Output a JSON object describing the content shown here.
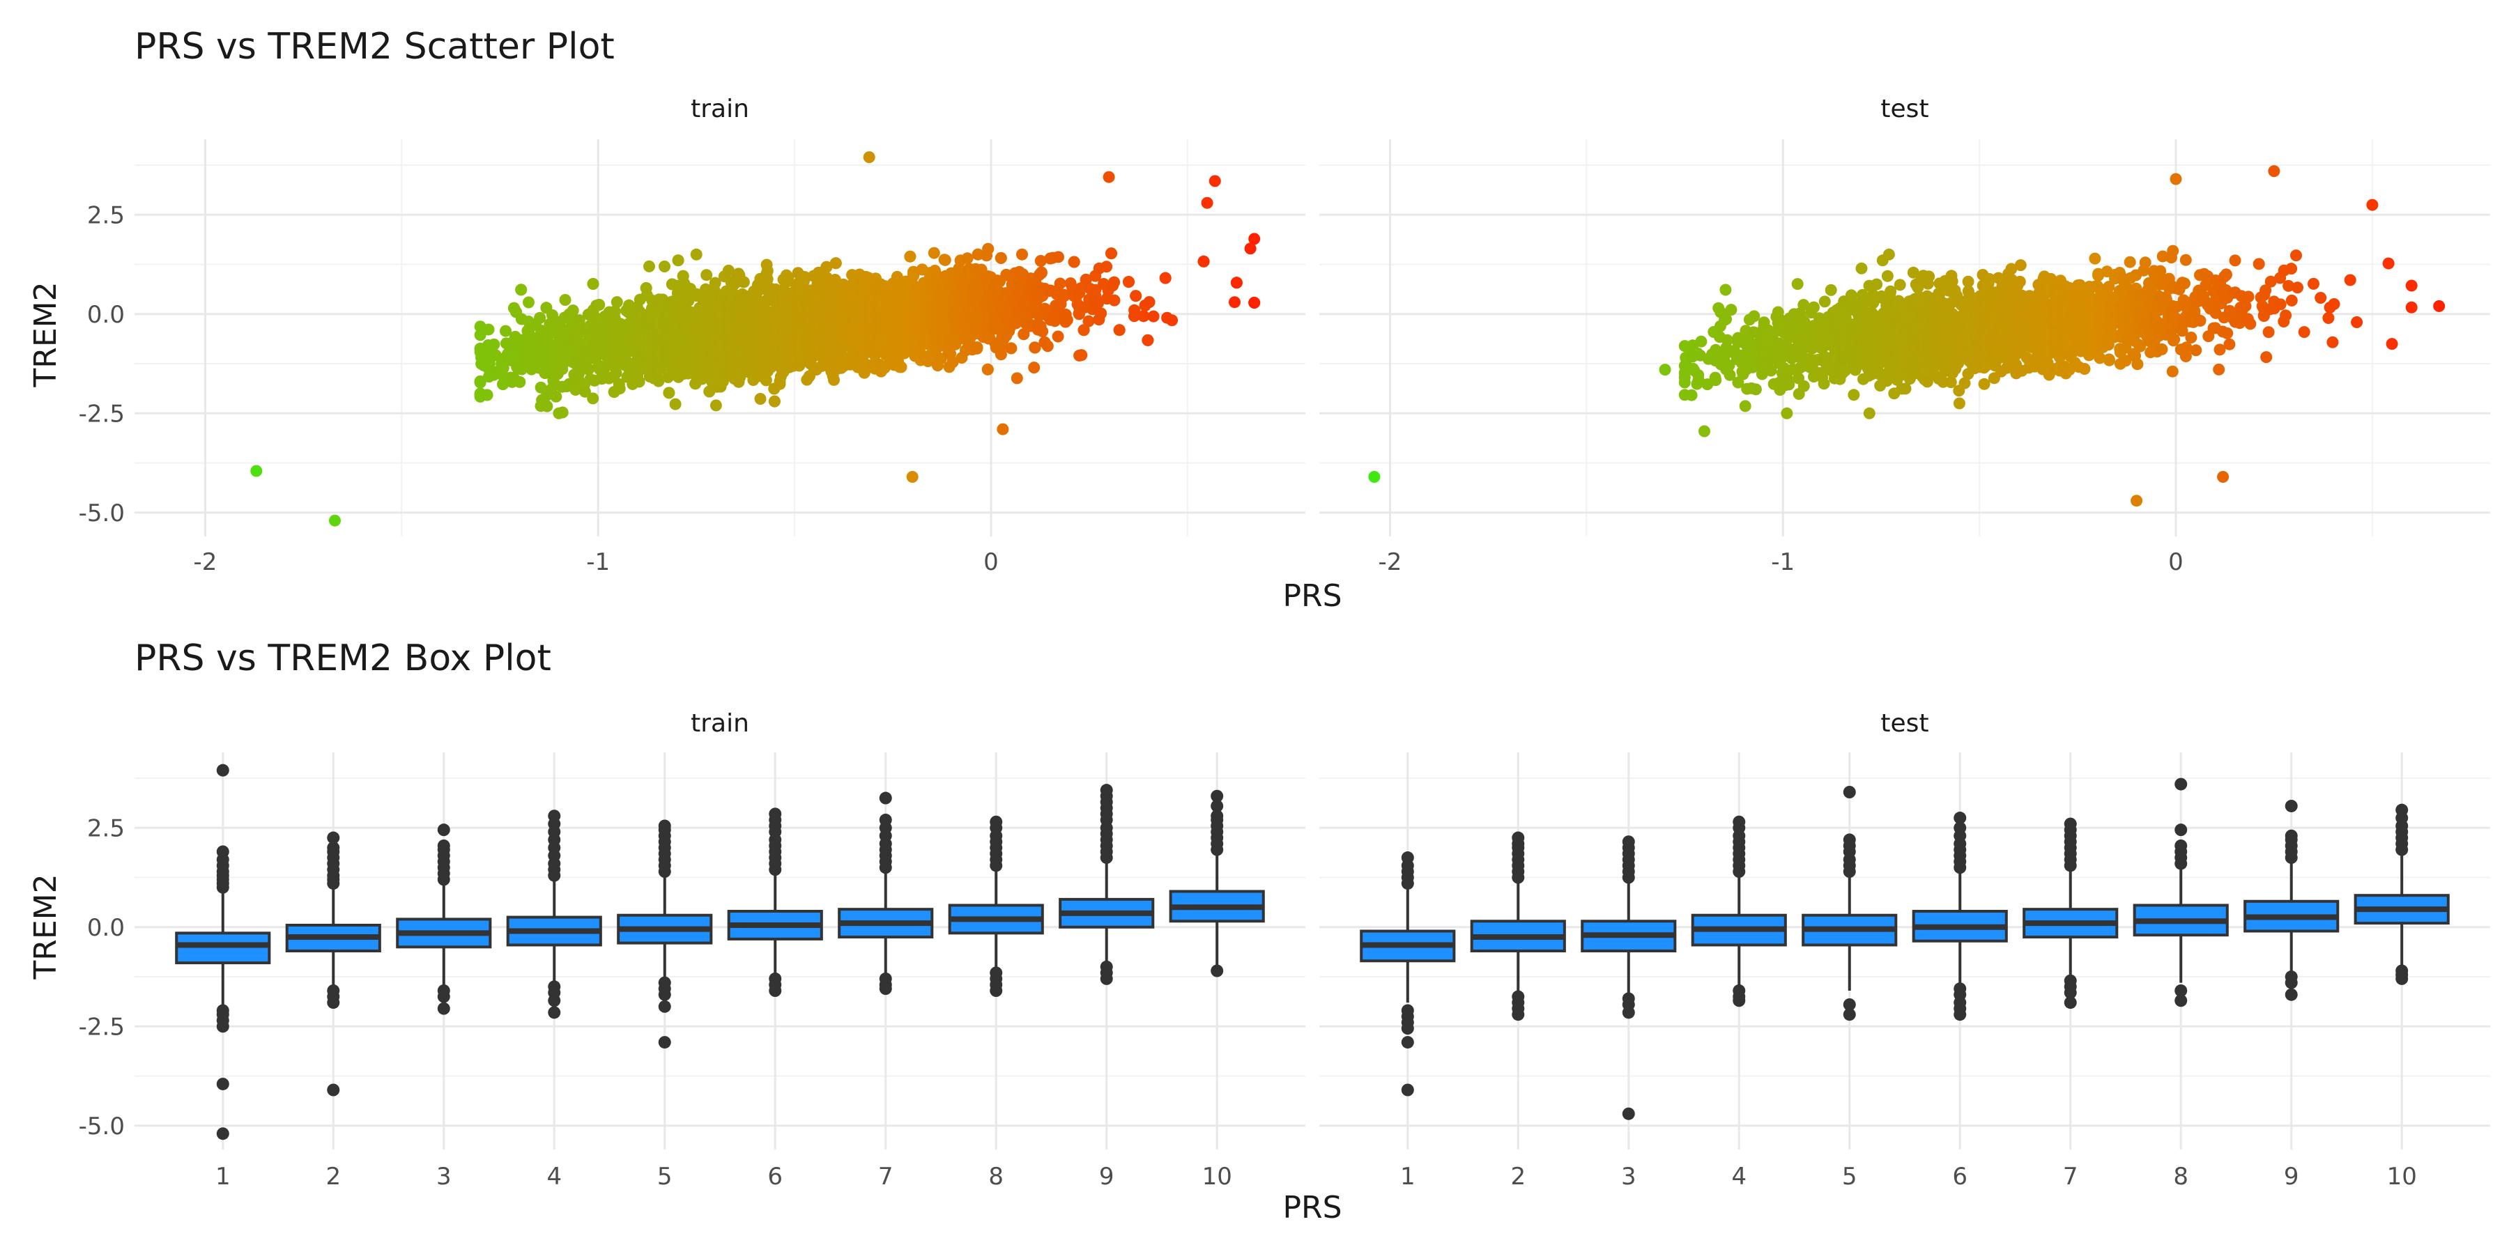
{
  "chart_data": [
    {
      "type": "scatter",
      "title": "PRS vs TREM2 Scatter Plot",
      "xlabel": "PRS",
      "ylabel": "TREM2",
      "xlim": [
        -2.18,
        0.8
      ],
      "ylim": [
        -5.6,
        4.4
      ],
      "x_ticks": [
        -2,
        -1,
        0
      ],
      "y_ticks": [
        -5.0,
        -2.5,
        0.0,
        2.5
      ],
      "y_tick_labels": [
        "-5.0",
        "-2.5",
        "0.0",
        "2.5"
      ],
      "grid": true,
      "color_scale": {
        "low": "#3fe810",
        "mid": "#d98c00",
        "high": "#ff2200",
        "domain": [
          -2.05,
          0.67
        ]
      },
      "facets": [
        {
          "label": "train",
          "n_points": 5200,
          "cloud": {
            "x_range": [
              -1.3,
              0.67
            ],
            "intercept": 0.15,
            "slope": 0.95,
            "spread": 0.55
          },
          "extreme_points": [
            {
              "x": -1.87,
              "y": -3.95
            },
            {
              "x": -1.67,
              "y": -5.2
            },
            {
              "x": -0.31,
              "y": 3.95
            },
            {
              "x": -0.2,
              "y": -4.1
            },
            {
              "x": 0.03,
              "y": -2.9
            },
            {
              "x": -0.75,
              "y": 1.5
            },
            {
              "x": -0.87,
              "y": 1.2
            },
            {
              "x": -1.1,
              "y": -2.5
            },
            {
              "x": -1.3,
              "y": -2.0
            },
            {
              "x": -0.7,
              "y": -2.3
            },
            {
              "x": 0.3,
              "y": 3.45
            },
            {
              "x": 0.57,
              "y": 3.35
            },
            {
              "x": 0.66,
              "y": 1.65
            },
            {
              "x": 0.55,
              "y": 2.8
            },
            {
              "x": 0.62,
              "y": 0.3
            }
          ]
        },
        {
          "label": "test",
          "n_points": 2100,
          "cloud": {
            "x_range": [
              -1.25,
              0.6
            ],
            "intercept": 0.1,
            "slope": 0.95,
            "spread": 0.55
          },
          "extreme_points": [
            {
              "x": -2.04,
              "y": -4.1
            },
            {
              "x": -0.1,
              "y": -4.7
            },
            {
              "x": 0.0,
              "y": 3.4
            },
            {
              "x": 0.25,
              "y": 3.6
            },
            {
              "x": -0.8,
              "y": 1.15
            },
            {
              "x": -0.73,
              "y": 1.5
            },
            {
              "x": -1.2,
              "y": -2.95
            },
            {
              "x": -0.99,
              "y": -2.5
            },
            {
              "x": -0.78,
              "y": -2.5
            },
            {
              "x": -1.3,
              "y": -1.4
            },
            {
              "x": 0.67,
              "y": 0.2
            },
            {
              "x": 0.5,
              "y": 2.75
            },
            {
              "x": 0.12,
              "y": -4.1
            },
            {
              "x": 0.55,
              "y": -0.75
            }
          ]
        }
      ]
    },
    {
      "type": "box",
      "title": "PRS vs TREM2 Box Plot",
      "xlabel": "PRS",
      "ylabel": "TREM2",
      "categories": [
        "1",
        "2",
        "3",
        "4",
        "5",
        "6",
        "7",
        "8",
        "9",
        "10"
      ],
      "ylim": [
        -5.6,
        4.4
      ],
      "y_ticks": [
        -5.0,
        -2.5,
        0.0,
        2.5
      ],
      "y_tick_labels": [
        "-5.0",
        "-2.5",
        "0.0",
        "2.5"
      ],
      "box_fill": "#1e90ff",
      "box_stroke": "#333333",
      "facets": [
        {
          "label": "train",
          "boxes": [
            {
              "q1": -0.9,
              "median": -0.45,
              "q3": -0.15,
              "whisker_low": -2.0,
              "whisker_high": 0.95,
              "outliers": [
                1.0,
                1.1,
                1.2,
                1.3,
                1.4,
                1.55,
                1.7,
                1.9,
                3.95,
                -2.1,
                -2.2,
                -2.35,
                -2.5,
                -3.95,
                -5.2
              ]
            },
            {
              "q1": -0.6,
              "median": -0.25,
              "q3": 0.05,
              "whisker_low": -1.55,
              "whisker_high": 1.05,
              "outliers": [
                1.1,
                1.2,
                1.3,
                1.45,
                1.6,
                1.75,
                1.9,
                2.0,
                2.25,
                -1.6,
                -1.75,
                -1.9,
                -4.1
              ]
            },
            {
              "q1": -0.5,
              "median": -0.15,
              "q3": 0.2,
              "whisker_low": -1.55,
              "whisker_high": 1.15,
              "outliers": [
                1.2,
                1.35,
                1.5,
                1.65,
                1.8,
                1.95,
                2.05,
                2.45,
                -1.6,
                -1.75,
                -2.05
              ]
            },
            {
              "q1": -0.45,
              "median": -0.1,
              "q3": 0.25,
              "whisker_low": -1.45,
              "whisker_high": 1.25,
              "outliers": [
                1.3,
                1.45,
                1.6,
                1.8,
                2.0,
                2.2,
                2.4,
                2.6,
                2.8,
                -1.5,
                -1.65,
                -1.85,
                -2.15
              ]
            },
            {
              "q1": -0.4,
              "median": -0.05,
              "q3": 0.3,
              "whisker_low": -1.35,
              "whisker_high": 1.35,
              "outliers": [
                1.4,
                1.55,
                1.7,
                1.85,
                2.0,
                2.15,
                2.3,
                2.45,
                2.55,
                -1.4,
                -1.55,
                -1.7,
                -2.0,
                -2.9
              ]
            },
            {
              "q1": -0.3,
              "median": 0.05,
              "q3": 0.4,
              "whisker_low": -1.25,
              "whisker_high": 1.4,
              "outliers": [
                1.45,
                1.6,
                1.75,
                1.9,
                2.05,
                2.2,
                2.4,
                2.55,
                2.7,
                2.85,
                -1.3,
                -1.45,
                -1.6
              ]
            },
            {
              "q1": -0.25,
              "median": 0.1,
              "q3": 0.45,
              "whisker_low": -1.25,
              "whisker_high": 1.45,
              "outliers": [
                1.5,
                1.65,
                1.8,
                1.95,
                2.1,
                2.3,
                2.5,
                2.7,
                3.25,
                -1.3,
                -1.45,
                -1.55
              ]
            },
            {
              "q1": -0.15,
              "median": 0.2,
              "q3": 0.55,
              "whisker_low": -1.1,
              "whisker_high": 1.5,
              "outliers": [
                1.55,
                1.7,
                1.85,
                2.0,
                2.15,
                2.3,
                2.5,
                2.65,
                -1.15,
                -1.3,
                -1.45,
                -1.6
              ]
            },
            {
              "q1": 0.0,
              "median": 0.35,
              "q3": 0.7,
              "whisker_low": -0.95,
              "whisker_high": 1.7,
              "outliers": [
                1.75,
                1.9,
                2.05,
                2.2,
                2.35,
                2.5,
                2.7,
                2.85,
                3.0,
                3.15,
                3.3,
                3.45,
                -1.0,
                -1.15,
                -1.3
              ]
            },
            {
              "q1": 0.15,
              "median": 0.5,
              "q3": 0.9,
              "whisker_low": -0.95,
              "whisker_high": 1.85,
              "outliers": [
                1.95,
                2.1,
                2.25,
                2.4,
                2.55,
                2.7,
                2.8,
                3.05,
                3.3,
                -1.1
              ]
            }
          ]
        },
        {
          "label": "test",
          "boxes": [
            {
              "q1": -0.85,
              "median": -0.45,
              "q3": -0.1,
              "whisker_low": -1.9,
              "whisker_high": 1.0,
              "outliers": [
                1.1,
                1.25,
                1.4,
                1.55,
                1.75,
                -2.1,
                -2.25,
                -2.4,
                -2.55,
                -2.9,
                -4.1
              ]
            },
            {
              "q1": -0.6,
              "median": -0.25,
              "q3": 0.15,
              "whisker_low": -1.65,
              "whisker_high": 1.2,
              "outliers": [
                1.25,
                1.4,
                1.55,
                1.7,
                1.85,
                2.0,
                2.1,
                2.25,
                -1.75,
                -1.9,
                -2.05,
                -2.2
              ]
            },
            {
              "q1": -0.6,
              "median": -0.2,
              "q3": 0.15,
              "whisker_low": -1.7,
              "whisker_high": 1.2,
              "outliers": [
                1.25,
                1.4,
                1.55,
                1.7,
                1.85,
                2.0,
                2.15,
                -1.8,
                -1.95,
                -2.15,
                -4.7
              ]
            },
            {
              "q1": -0.45,
              "median": -0.05,
              "q3": 0.3,
              "whisker_low": -1.5,
              "whisker_high": 1.35,
              "outliers": [
                1.4,
                1.55,
                1.7,
                1.85,
                2.0,
                2.15,
                2.3,
                2.5,
                2.65,
                -1.6,
                -1.75,
                -1.85
              ]
            },
            {
              "q1": -0.45,
              "median": -0.05,
              "q3": 0.3,
              "whisker_low": -1.6,
              "whisker_high": 1.35,
              "outliers": [
                1.4,
                1.55,
                1.7,
                1.9,
                2.05,
                2.2,
                3.4,
                -1.95,
                -2.2
              ]
            },
            {
              "q1": -0.35,
              "median": 0.0,
              "q3": 0.4,
              "whisker_low": -1.45,
              "whisker_high": 1.45,
              "outliers": [
                1.5,
                1.65,
                1.8,
                1.95,
                2.1,
                2.3,
                2.5,
                2.75,
                -1.55,
                -1.7,
                -1.9,
                -2.05,
                -2.2
              ]
            },
            {
              "q1": -0.25,
              "median": 0.1,
              "q3": 0.45,
              "whisker_low": -1.3,
              "whisker_high": 1.5,
              "outliers": [
                1.55,
                1.7,
                1.85,
                2.0,
                2.15,
                2.3,
                2.45,
                2.6,
                -1.35,
                -1.5,
                -1.65,
                -1.9
              ]
            },
            {
              "q1": -0.2,
              "median": 0.15,
              "q3": 0.55,
              "whisker_low": -1.4,
              "whisker_high": 1.55,
              "outliers": [
                1.6,
                1.75,
                1.9,
                2.05,
                2.45,
                3.6,
                -1.6,
                -1.85
              ]
            },
            {
              "q1": -0.1,
              "median": 0.25,
              "q3": 0.65,
              "whisker_low": -1.15,
              "whisker_high": 1.65,
              "outliers": [
                1.75,
                1.9,
                2.05,
                2.2,
                2.3,
                3.05,
                -1.25,
                -1.4,
                -1.7
              ]
            },
            {
              "q1": 0.1,
              "median": 0.45,
              "q3": 0.8,
              "whisker_low": -1.0,
              "whisker_high": 1.8,
              "outliers": [
                1.95,
                2.1,
                2.25,
                2.4,
                2.55,
                2.75,
                2.95,
                -1.1,
                -1.2,
                -1.3
              ]
            }
          ]
        }
      ]
    }
  ]
}
